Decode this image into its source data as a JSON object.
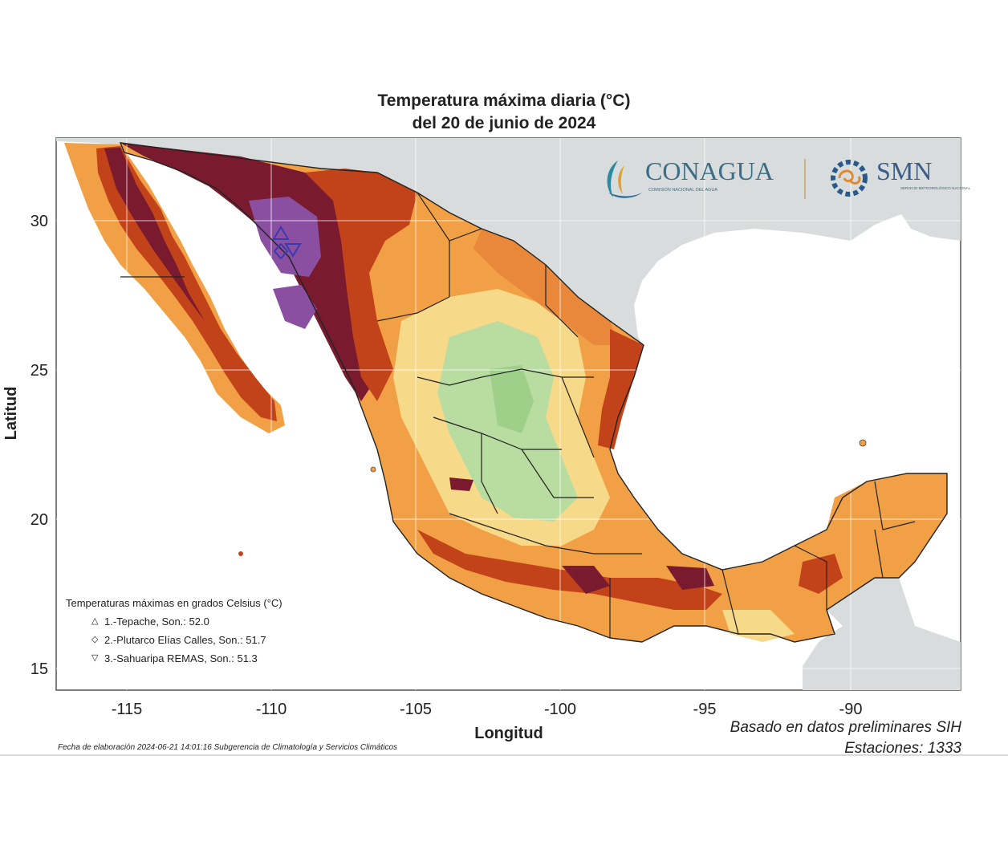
{
  "title": {
    "line1": "Temperatura máxima diaria (°C)",
    "line2": "del 20 de junio de 2024"
  },
  "logos": {
    "conagua": "CONAGUA",
    "conagua_sub": "COMISIÓN NACIONAL DEL AGUA",
    "smn": "SMN",
    "smn_sub": "SERVICIO METEOROLÓGICO NACIONAL"
  },
  "axes": {
    "ylabel": "Latitud",
    "xlabel": "Longitud",
    "lat_ticks": [
      "30",
      "25",
      "20",
      "15"
    ],
    "lon_ticks": [
      "-115",
      "-110",
      "-105",
      "-100",
      "-95",
      "-90"
    ]
  },
  "legend": {
    "title": "Temperaturas máximas en grados Celsius (°C)",
    "items": [
      {
        "symbol": "triangle-up",
        "text": "1.-Tepache, Son.: 52.0"
      },
      {
        "symbol": "diamond",
        "text": "2.-Plutarco Elías Calles, Son.: 51.7"
      },
      {
        "symbol": "triangle-down",
        "text": "3.-Sahuaripa REMAS, Son.: 51.3"
      }
    ]
  },
  "source": {
    "line1": "Basado en datos preliminares SIH",
    "line2": "Estaciones:  1333"
  },
  "footer": "Fecha de elaboración 2024-06-21 14:01:16 Subgerencia de Climatología y Servicios Climáticos",
  "colors": {
    "land_base": "#f2a045",
    "hot": "#c2421a",
    "very_hot": "#7a1a2e",
    "extreme": "#8a4fa0",
    "mild": "#f7d98a",
    "cool": "#b9dca0",
    "sea": "#ffffff",
    "foreign_land": "#d9dcdc"
  }
}
